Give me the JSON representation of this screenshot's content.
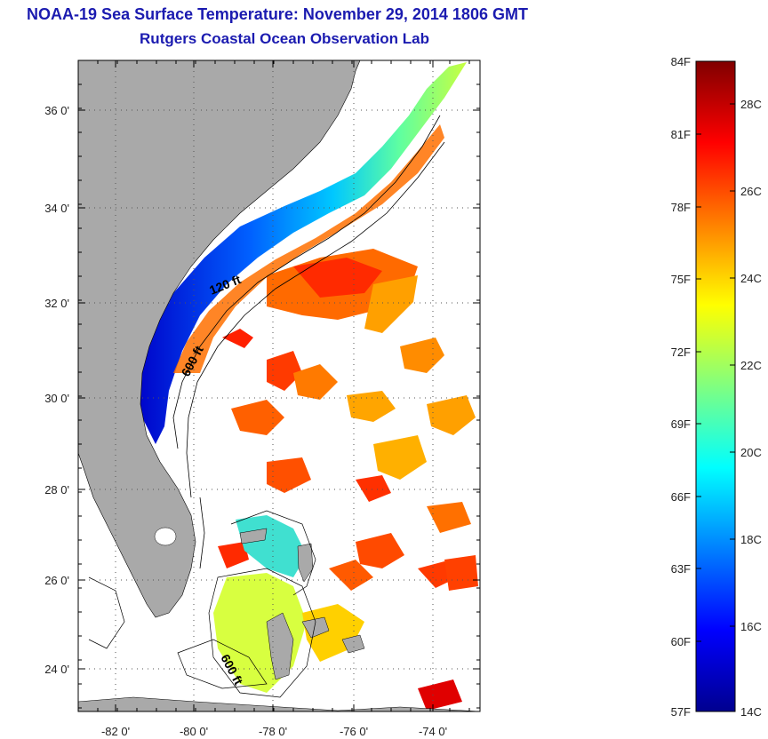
{
  "header": {
    "title": "NOAA-19 Sea Surface Temperature:  November 29, 2014 1806 GMT",
    "subtitle": "Rutgers Coastal Ocean Observation Lab"
  },
  "map": {
    "lat_labels": [
      "36 0'",
      "34 0'",
      "32 0'",
      "30 0'",
      "28 0'",
      "26 0'",
      "24 0'"
    ],
    "lon_labels": [
      "-82 0'",
      "-80 0'",
      "-78 0'",
      "-76 0'",
      "-74 0'"
    ],
    "contours": {
      "shelf": "120 ft",
      "slope": "600 ft",
      "bahamas": "600 ft"
    },
    "colors": {
      "land": "#a9a9a9",
      "ocean_nodata": "#ffffff",
      "grid": "#555555"
    }
  },
  "colorbar": {
    "fahrenheit_labels": [
      "84F",
      "81F",
      "78F",
      "75F",
      "72F",
      "69F",
      "66F",
      "63F",
      "60F",
      "57F"
    ],
    "celsius_labels": [
      "28C",
      "26C",
      "24C",
      "22C",
      "20C",
      "18C",
      "16C",
      "14C"
    ],
    "stops": [
      "#00008f",
      "#0000ff",
      "#0080ff",
      "#00ffff",
      "#80ff80",
      "#ffff00",
      "#ff8000",
      "#ff0000",
      "#800000"
    ]
  }
}
